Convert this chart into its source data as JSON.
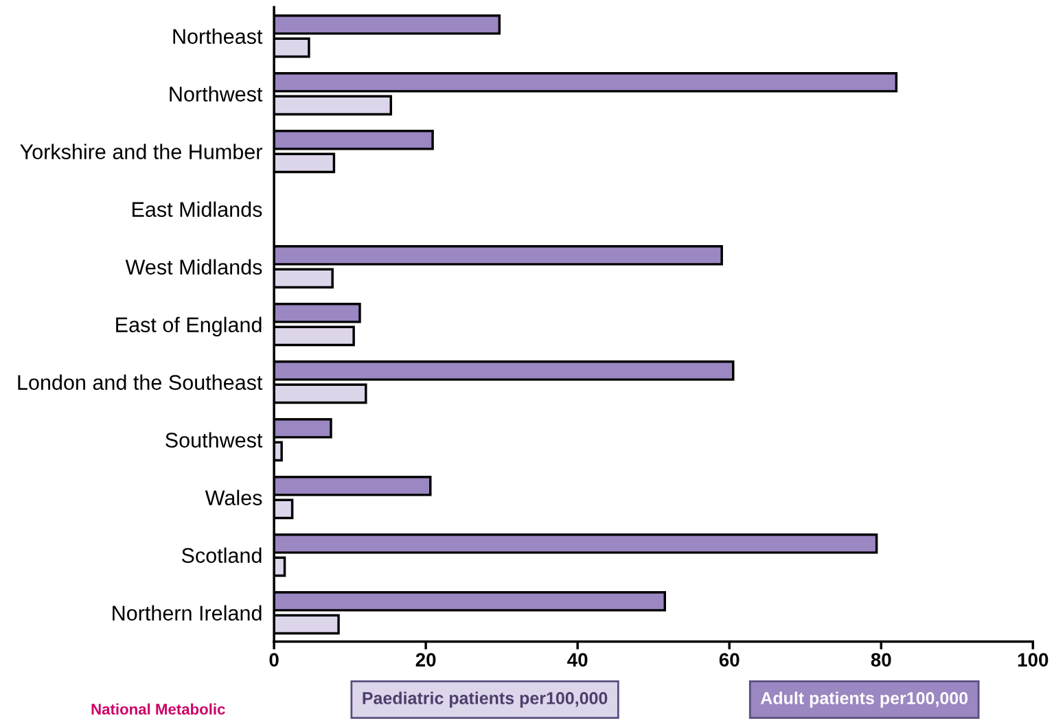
{
  "chart_data": {
    "type": "bar",
    "orientation": "horizontal",
    "categories": [
      "Northeast",
      "Northwest",
      "Yorkshire and the Humber",
      "East Midlands",
      "West Midlands",
      "East of England",
      "London and the Southeast",
      "Southwest",
      "Wales",
      "Scotland",
      "Northern Ireland"
    ],
    "series": [
      {
        "name": "Adult patients per100,000",
        "color": "#9b87c1",
        "values": [
          29.7,
          82.0,
          20.9,
          null,
          59.0,
          11.3,
          60.5,
          7.5,
          20.6,
          79.4,
          51.5
        ]
      },
      {
        "name": "Paediatric patients per100,000",
        "color": "#ddd5ea",
        "values": [
          4.6,
          15.4,
          7.9,
          null,
          7.7,
          10.5,
          12.1,
          1.0,
          2.4,
          1.4,
          8.5
        ]
      }
    ],
    "xlim": [
      0,
      100
    ],
    "xticks": [
      0,
      20,
      40,
      60,
      80,
      100
    ],
    "grid": false,
    "legend": "bottom",
    "annotations": [
      "National Metabolic"
    ]
  }
}
